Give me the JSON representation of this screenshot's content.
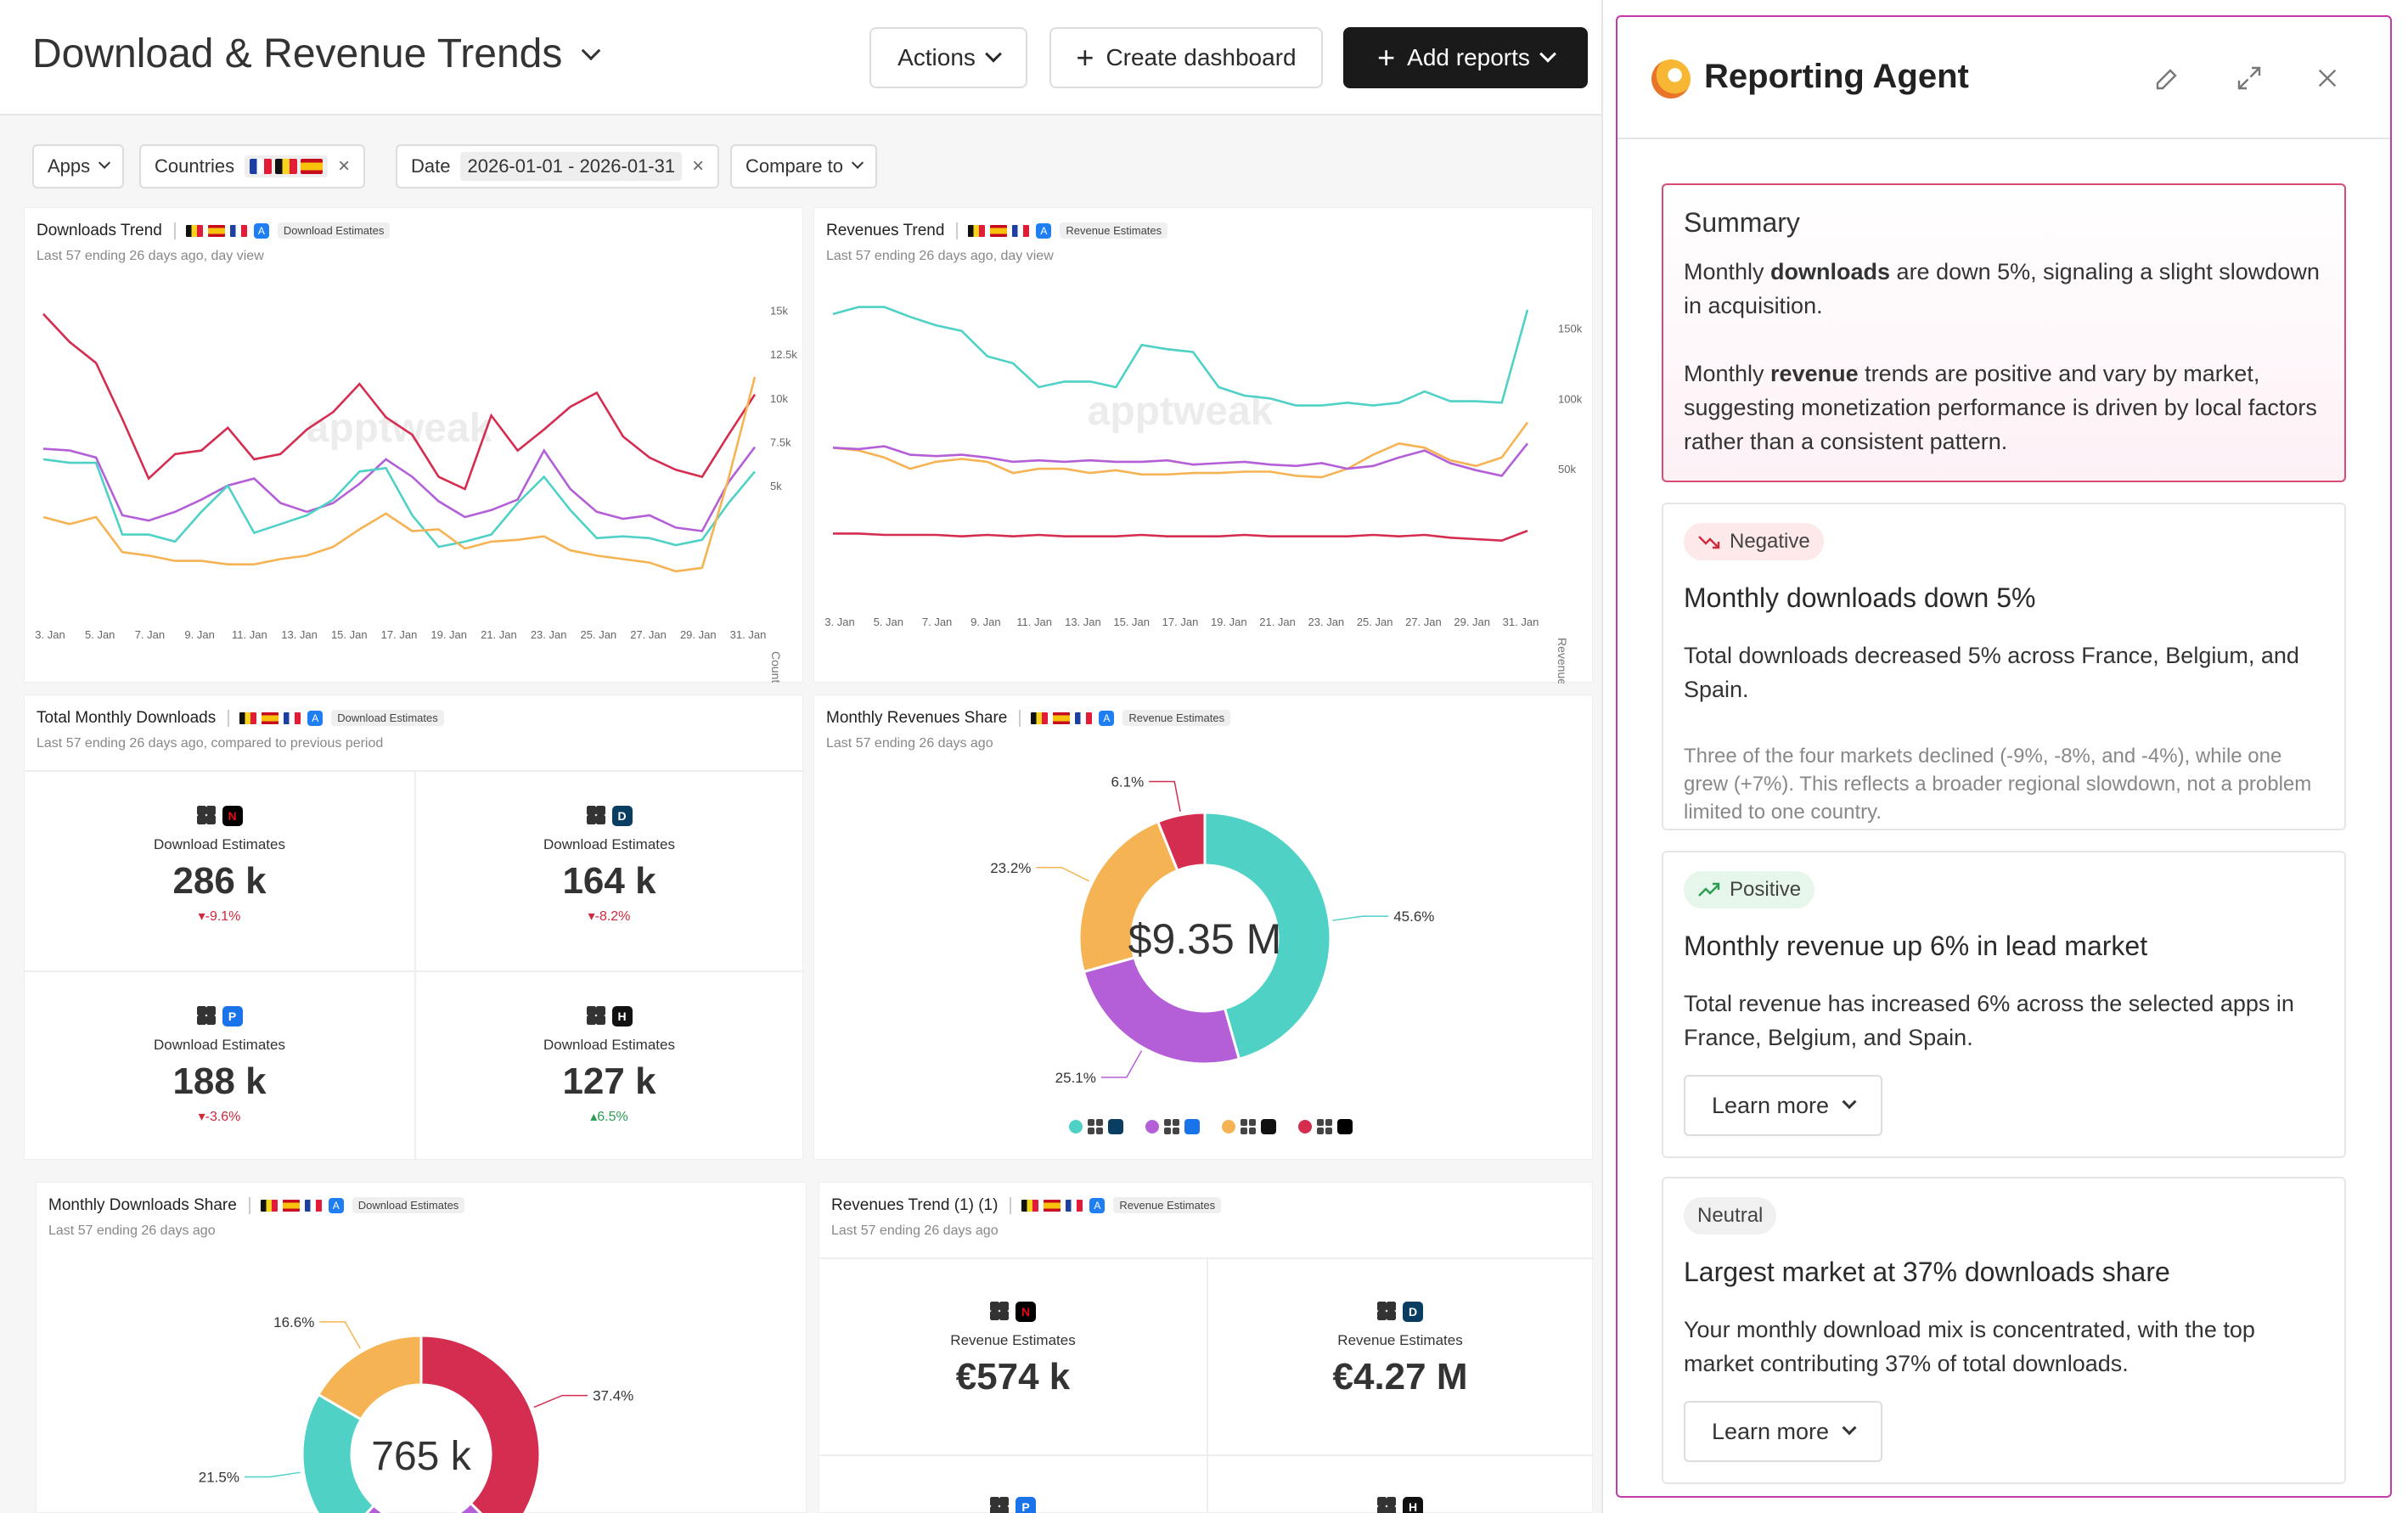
{
  "header": {
    "title": "Download & Revenue Trends",
    "actions_label": "Actions",
    "create_label": "Create dashboard",
    "add_reports_label": "Add reports"
  },
  "filters": {
    "apps": "Apps",
    "countries": "Countries",
    "date_label": "Date",
    "date_value": "2026-01-01 - 2026-01-31",
    "compare": "Compare to"
  },
  "downloads_trend": {
    "title": "Downloads Trend",
    "tag": "Download Estimates",
    "subtitle": "Last 57 ending 26 days ago, day view",
    "watermark": "apptweak"
  },
  "revenues_trend": {
    "title": "Revenues Trend",
    "tag": "Revenue Estimates",
    "subtitle": "Last 57 ending 26 days ago, day view",
    "watermark": "apptweak"
  },
  "total_downloads": {
    "title": "Total Monthly Downloads",
    "tag": "Download Estimates",
    "subtitle": "Last 57 ending 26 days ago, compared to previous period",
    "kpis": [
      {
        "label": "Download Estimates",
        "value": "286 k",
        "change": "-9.1%",
        "dir": "neg",
        "app_color": "#000",
        "app_text": "N",
        "app_fg": "#e50914"
      },
      {
        "label": "Download Estimates",
        "value": "164 k",
        "change": "-8.2%",
        "dir": "neg",
        "app_color": "#0a3d62",
        "app_text": "D",
        "app_fg": "#fff"
      },
      {
        "label": "Download Estimates",
        "value": "188 k",
        "change": "-3.6%",
        "dir": "neg",
        "app_color": "#1a73e8",
        "app_text": "P",
        "app_fg": "#fff"
      },
      {
        "label": "Download Estimates",
        "value": "127 k",
        "change": "6.5%",
        "dir": "pos",
        "app_color": "#111",
        "app_text": "H",
        "app_fg": "#fff"
      }
    ]
  },
  "revenues_share": {
    "title": "Monthly Revenues Share",
    "tag": "Revenue Estimates",
    "subtitle": "Last 57 ending 26 days ago",
    "center": "$9.35 M"
  },
  "downloads_share": {
    "title": "Monthly Downloads Share",
    "tag": "Download Estimates",
    "subtitle": "Last 57 ending 26 days ago",
    "center": "765 k"
  },
  "revenues_trend_kpi": {
    "title": "Revenues Trend (1) (1)",
    "tag": "Revenue Estimates",
    "subtitle": "Last 57 ending 26 days ago",
    "kpis": [
      {
        "label": "Revenue Estimates",
        "value": "€574 k"
      },
      {
        "label": "Revenue Estimates",
        "value": "€4.27 M"
      }
    ]
  },
  "agent": {
    "title": "Reporting Agent",
    "summary": {
      "heading": "Summary",
      "p1_pre": "Monthly ",
      "p1_bold": "downloads",
      "p1_post": " are down 5%, signaling a slight slowdown in acquisition.",
      "p2_pre": "Monthly ",
      "p2_bold": "revenue",
      "p2_post": " trends are positive and vary by market, suggesting monetization performance is driven by local factors rather than a consistent pattern."
    },
    "insights": [
      {
        "badge": "Negative",
        "heading": "Monthly downloads down 5%",
        "body": "Total downloads decreased 5% across France, Belgium, and Spain.",
        "detail": "Three of the four markets declined (-9%, -8%, and -4%), while one grew (+7%). This reflects a broader regional slowdown, not a problem limited to one country."
      },
      {
        "badge": "Positive",
        "heading": "Monthly revenue up 6% in lead market",
        "body": "Total revenue has increased 6% across the selected apps in France, Belgium, and Spain.",
        "learn": "Learn more"
      },
      {
        "badge": "Neutral",
        "heading": "Largest market at 37% downloads share",
        "body": "Your monthly download mix is concentrated, with the top market contributing 37% of total downloads.",
        "learn": "Learn more"
      }
    ]
  },
  "colors": {
    "teal": "#4fd1c5",
    "purple": "#b45fd8",
    "orange": "#f6b354",
    "red": "#d42d50"
  },
  "chart_data": [
    {
      "type": "line",
      "title": "Downloads Trend",
      "ylabel": "Count",
      "x_ticks": [
        "3. Jan",
        "5. Jan",
        "7. Jan",
        "9. Jan",
        "11. Jan",
        "13. Jan",
        "15. Jan",
        "17. Jan",
        "19. Jan",
        "21. Jan",
        "23. Jan",
        "25. Jan",
        "27. Jan",
        "29. Jan",
        "31. Jan"
      ],
      "y_ticks": [
        "15k",
        "12.5k",
        "10k",
        "7.5k",
        "5k"
      ],
      "ylim": [
        0,
        16000
      ],
      "series": [
        {
          "color": "#d42d50",
          "values": [
            14800,
            13200,
            12000,
            8800,
            5400,
            6800,
            7000,
            8300,
            6500,
            6800,
            8200,
            9200,
            10800,
            8900,
            7900,
            5500,
            4800,
            9000,
            7000,
            8200,
            9500,
            10300,
            7800,
            6600,
            5900,
            5500,
            7900,
            10200
          ]
        },
        {
          "color": "#b45fd8",
          "values": [
            7100,
            7000,
            6600,
            3300,
            3000,
            3500,
            4200,
            5000,
            5400,
            4000,
            3500,
            4000,
            5100,
            6500,
            5500,
            4100,
            3200,
            3600,
            4200,
            7000,
            4800,
            3500,
            3100,
            3300,
            2600,
            2400,
            5200,
            7200
          ]
        },
        {
          "color": "#4fd1c5",
          "values": [
            6500,
            6300,
            6300,
            2200,
            2200,
            1800,
            3500,
            5000,
            2300,
            2800,
            3300,
            4200,
            5800,
            6000,
            3300,
            1500,
            1800,
            2200,
            4000,
            5500,
            3600,
            2000,
            2100,
            2000,
            1600,
            1900,
            4000,
            5800
          ]
        },
        {
          "color": "#f6b354",
          "values": [
            3200,
            2800,
            3200,
            1200,
            1000,
            700,
            700,
            500,
            500,
            800,
            1000,
            1500,
            2500,
            3400,
            2400,
            2500,
            1400,
            1800,
            1900,
            2100,
            1300,
            1000,
            800,
            600,
            100,
            300,
            5400,
            11200
          ]
        }
      ]
    },
    {
      "type": "line",
      "title": "Revenues Trend",
      "ylabel": "Revenues/Costs",
      "x_ticks": [
        "3. Jan",
        "5. Jan",
        "7. Jan",
        "9. Jan",
        "11. Jan",
        "13. Jan",
        "15. Jan",
        "17. Jan",
        "19. Jan",
        "21. Jan",
        "23. Jan",
        "25. Jan",
        "27. Jan",
        "29. Jan",
        "31. Jan"
      ],
      "y_ticks": [
        "150k",
        "100k",
        "50k"
      ],
      "ylim": [
        0,
        175000
      ],
      "series": [
        {
          "color": "#4fd1c5",
          "values": [
            160000,
            165000,
            165000,
            158000,
            152000,
            148000,
            130000,
            125000,
            108000,
            112000,
            112000,
            108000,
            138000,
            135000,
            133000,
            108000,
            102000,
            100000,
            95000,
            95000,
            97000,
            95000,
            97000,
            105000,
            98000,
            98000,
            97000,
            163000
          ]
        },
        {
          "color": "#f6b354",
          "values": [
            65000,
            63000,
            58000,
            50000,
            55000,
            57000,
            55000,
            47000,
            50000,
            50000,
            47000,
            49000,
            46000,
            46000,
            47000,
            47000,
            48000,
            48000,
            45000,
            44000,
            50000,
            60000,
            68000,
            65000,
            56000,
            52000,
            58000,
            83000
          ]
        },
        {
          "color": "#b45fd8",
          "values": [
            65000,
            64000,
            66000,
            60000,
            59000,
            60000,
            58000,
            55000,
            56000,
            55000,
            56000,
            55000,
            55000,
            56000,
            53000,
            54000,
            55000,
            53000,
            52000,
            54000,
            50000,
            52000,
            58000,
            63000,
            54000,
            49000,
            45000,
            68000
          ]
        },
        {
          "color": "#d42d50",
          "values": [
            4000,
            4000,
            3000,
            3000,
            3000,
            2000,
            3000,
            2000,
            3000,
            2000,
            2000,
            2000,
            3000,
            2000,
            2000,
            2000,
            3000,
            2000,
            2000,
            2000,
            2000,
            3000,
            2000,
            3000,
            1000,
            0,
            -1000,
            6000
          ]
        }
      ]
    },
    {
      "type": "pie",
      "title": "Monthly Revenues Share",
      "slices": [
        {
          "value": 45.6,
          "label": "45.6%",
          "color": "#4fd1c5"
        },
        {
          "value": 25.1,
          "label": "25.1%",
          "color": "#b45fd8"
        },
        {
          "value": 23.2,
          "label": "23.2%",
          "color": "#f6b354"
        },
        {
          "value": 6.1,
          "label": "6.1%",
          "color": "#d42d50"
        }
      ]
    },
    {
      "type": "pie",
      "title": "Monthly Downloads Share",
      "slices": [
        {
          "value": 37.4,
          "label": "37.4%",
          "color": "#d42d50"
        },
        {
          "value": 24.5,
          "label": "",
          "color": "#b45fd8"
        },
        {
          "value": 21.5,
          "label": "21.5%",
          "color": "#4fd1c5"
        },
        {
          "value": 16.6,
          "label": "16.6%",
          "color": "#f6b354"
        }
      ]
    }
  ]
}
